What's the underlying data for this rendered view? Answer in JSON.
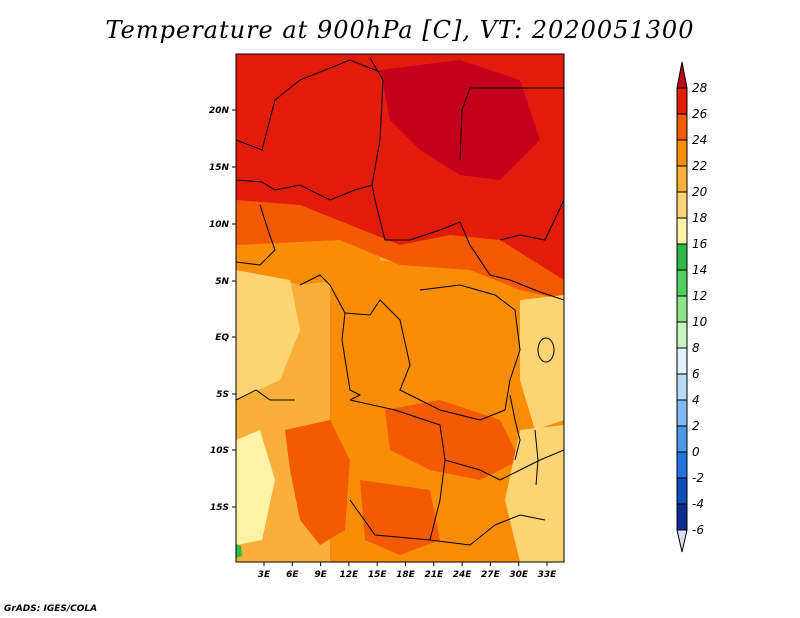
{
  "title": "Temperature at 900hPa [C], VT: 2020051300",
  "credit": "GrADS: IGES/COLA",
  "map": {
    "lat_labels": [
      "20N",
      "15N",
      "10N",
      "5N",
      "EQ",
      "5S",
      "10S",
      "15S"
    ],
    "lon_labels": [
      "3E",
      "6E",
      "9E",
      "12E",
      "15E",
      "18E",
      "21E",
      "24E",
      "27E",
      "30E",
      "33E"
    ]
  },
  "colorbar": {
    "labels": [
      "28",
      "26",
      "24",
      "22",
      "20",
      "18",
      "16",
      "14",
      "12",
      "10",
      "8",
      "6",
      "4",
      "2",
      "0",
      "-2",
      "-4",
      "-6"
    ],
    "colors": [
      "#c4001c",
      "#e21b0b",
      "#f45a04",
      "#f98d07",
      "#f9b03a",
      "#fbd474",
      "#fdf2a6",
      "#2fb846",
      "#4fd05f",
      "#8ee48d",
      "#c5f4c1",
      "#dff2fd",
      "#b6dcf8",
      "#7fbbf2",
      "#4a97ec",
      "#2271e0",
      "#0f4dbe",
      "#0a2c94",
      "#0a1466",
      "#dcdcf4"
    ]
  }
}
